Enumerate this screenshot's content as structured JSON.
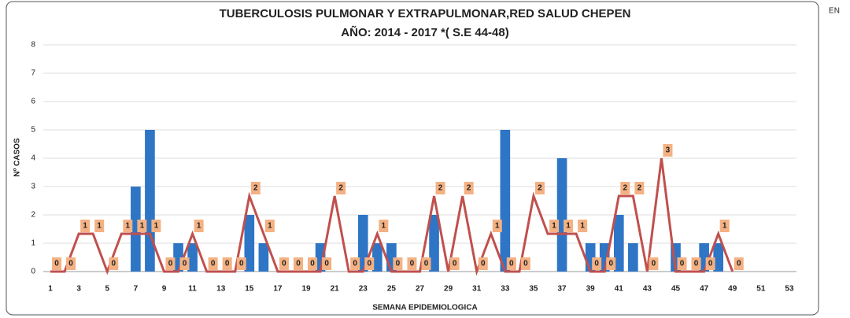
{
  "chart_data": {
    "type": "bar_line",
    "title": "TUBERCULOSIS PULMONAR Y EXTRAPULMONAR,RED SALUD CHEPEN",
    "subtitle": "AÑO: 2014 - 2017 *( S.E 44-48)",
    "corner_text": "EN",
    "y_label": "Nº CASOS",
    "x_label": "SEMANA EPIDEMIOLOGICA",
    "categories": [
      "1",
      null,
      "3",
      null,
      "5",
      null,
      "7",
      null,
      "9",
      null,
      "11",
      null,
      "13",
      null,
      "15",
      null,
      "17",
      null,
      "19",
      null,
      "21",
      null,
      "23",
      null,
      "25",
      null,
      "27",
      null,
      "29",
      null,
      "31",
      null,
      "33",
      null,
      "35",
      null,
      "37",
      null,
      "39",
      null,
      "41",
      null,
      "43",
      null,
      "45",
      null,
      "47",
      null,
      "49",
      null,
      "51",
      null,
      "53"
    ],
    "series": [
      {
        "type": "bar",
        "color": "#2e75c6",
        "values": [
          0,
          0,
          0,
          0,
          0,
          0,
          3,
          5,
          0,
          1,
          1,
          0,
          0,
          0,
          2,
          1,
          0,
          0,
          0,
          1,
          0,
          0,
          2,
          1,
          1,
          0,
          0,
          2,
          0,
          0,
          0,
          0,
          5,
          0,
          0,
          0,
          4,
          0,
          1,
          1,
          2,
          1,
          0,
          0,
          1,
          0,
          1,
          1,
          0,
          0,
          0,
          0,
          0
        ]
      },
      {
        "type": "line",
        "axis": "y2",
        "color": "#c0504d",
        "label_color": "#f4b183",
        "values": [
          0,
          0,
          1,
          1,
          0,
          1,
          1,
          1,
          0,
          0,
          1,
          0,
          0,
          0,
          2,
          1,
          0,
          0,
          0,
          0,
          2,
          0,
          0,
          1,
          0,
          0,
          0,
          2,
          0,
          2,
          0,
          1,
          0,
          0,
          2,
          1,
          1,
          1,
          0,
          0,
          2,
          2,
          0,
          3,
          0,
          0,
          0,
          1,
          0,
          null,
          null,
          null,
          null
        ]
      }
    ],
    "ylim": [
      0,
      8
    ],
    "yticks": [
      0,
      1,
      2,
      3,
      4,
      5,
      6,
      7,
      8
    ],
    "y2lim": [
      0,
      6
    ],
    "grid": true
  }
}
